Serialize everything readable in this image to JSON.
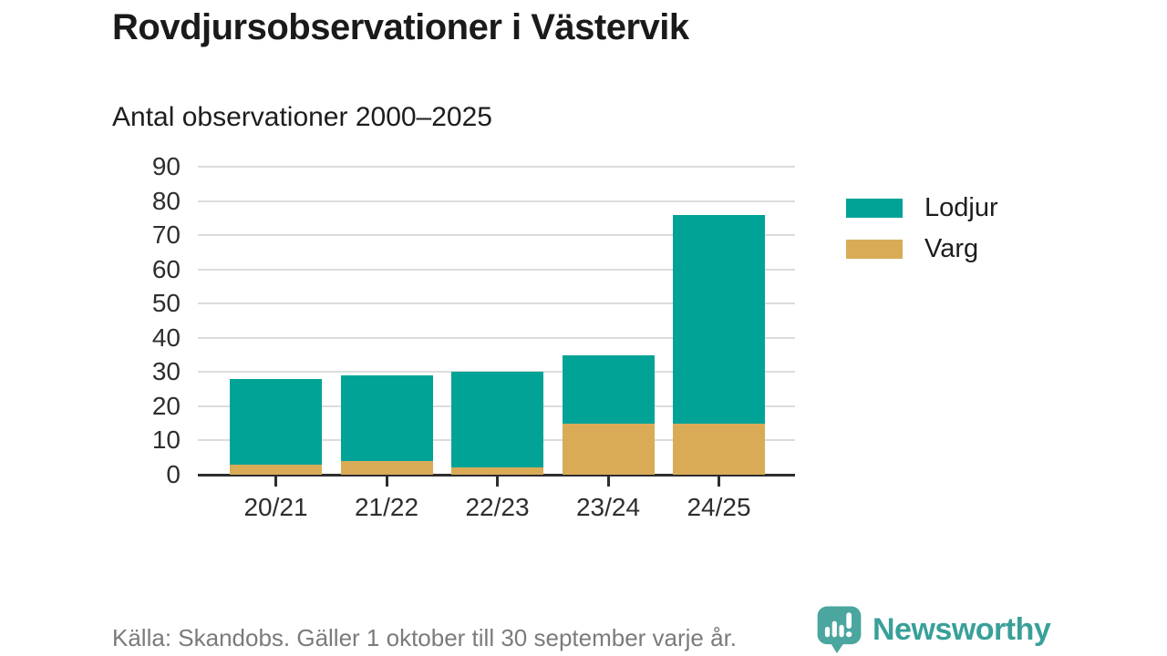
{
  "header": {
    "title": "Rovdjursobservationer i Västervik",
    "subtitle": "Antal observationer 2000–2025"
  },
  "chart_data": {
    "type": "bar",
    "stacked": true,
    "title": "Rovdjursobservationer i Västervik",
    "subtitle": "Antal observationer 2000–2025",
    "categories": [
      "20/21",
      "21/22",
      "22/23",
      "23/24",
      "24/25"
    ],
    "series": [
      {
        "name": "Lodjur",
        "color": "#00a396",
        "values": [
          25,
          25,
          28,
          20,
          61
        ]
      },
      {
        "name": "Varg",
        "color": "#d9ab57",
        "values": [
          3,
          4,
          2,
          15,
          15
        ]
      }
    ],
    "stack_bottom_to_top": [
      "Varg",
      "Lodjur"
    ],
    "stacked_totals": [
      28,
      29,
      30,
      35,
      76
    ],
    "ylim": [
      0,
      90
    ],
    "yticks": [
      0,
      10,
      20,
      30,
      40,
      50,
      60,
      70,
      80,
      90
    ],
    "xlabel": "",
    "ylabel": "",
    "grid": true,
    "legend_position": "right"
  },
  "footer": {
    "source": "Källa: Skandobs. Gäller 1 oktober till 30 september varje år.",
    "brand": "Newsworthy"
  },
  "colors": {
    "lodjur": "#00a396",
    "varg": "#d9ab57",
    "grid": "#dcdcdc",
    "axis": "#2d2d2d",
    "title_text": "#1a1a1a",
    "axis_text": "#2e2e2e",
    "source_text": "#7b7b7b",
    "brand_teal": "#39a099",
    "brand_icon": "#4aa69e"
  }
}
